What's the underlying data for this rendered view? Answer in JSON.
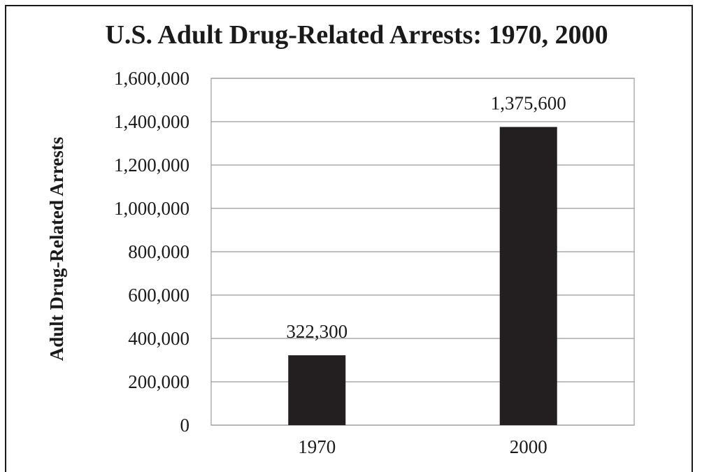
{
  "chart_data": {
    "type": "bar",
    "title": "U.S. Adult Drug-Related Arrests: 1970, 2000",
    "xlabel": "",
    "ylabel": "Adult Drug-Related Arrests",
    "categories": [
      "1970",
      "2000"
    ],
    "values": [
      322300,
      1375600
    ],
    "data_labels": [
      "322,300",
      "1,375,600"
    ],
    "ylim": [
      0,
      1600000
    ],
    "yticks": [
      0,
      200000,
      400000,
      600000,
      800000,
      1000000,
      1200000,
      1400000,
      1600000
    ],
    "ytick_labels": [
      "0",
      "200,000",
      "400,000",
      "600,000",
      "800,000",
      "1,000,000",
      "1,200,000",
      "1,400,000",
      "1,600,000"
    ],
    "grid": true,
    "legend": "none",
    "bar_color": "#231f20",
    "grid_color": "#9a9a9a"
  }
}
